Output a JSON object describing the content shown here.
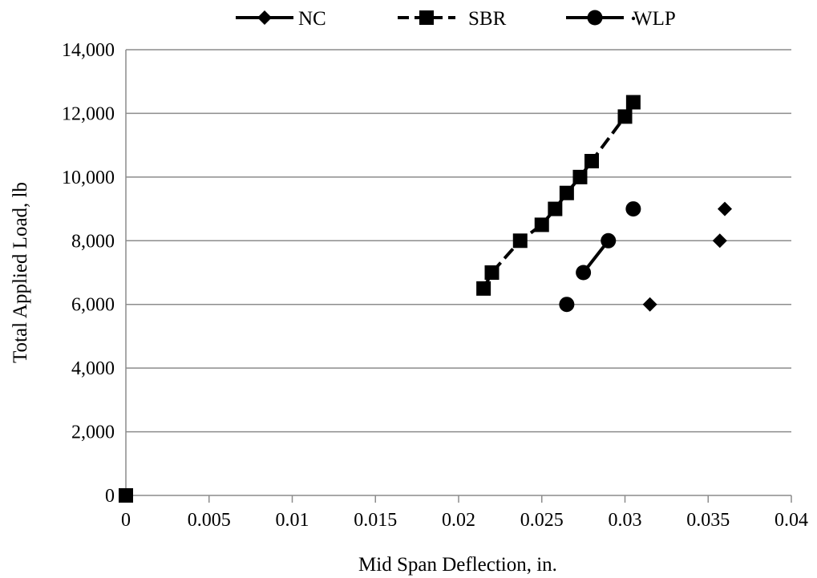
{
  "chart_data": {
    "type": "scatter",
    "title": "",
    "xlabel": "Mid Span Deflection, in.",
    "ylabel": "Total Applied Load, lb",
    "xlim": [
      0,
      0.04
    ],
    "ylim": [
      0,
      14000
    ],
    "x_ticks": [
      "0",
      "0.005",
      "0.01",
      "0.015",
      "0.02",
      "0.025",
      "0.03",
      "0.035",
      "0.04"
    ],
    "y_ticks": [
      "0",
      "2,000",
      "4,000",
      "6,000",
      "8,000",
      "10,000",
      "12,000",
      "14,000"
    ],
    "grid": "horizontal",
    "legend_position": "top",
    "series": [
      {
        "name": "NC",
        "marker": "diamond",
        "line": "solid",
        "color": "#000000",
        "points": [
          [
            0,
            0
          ],
          [
            0.0315,
            6000
          ],
          [
            0.0357,
            8000
          ],
          [
            0.036,
            9000
          ]
        ]
      },
      {
        "name": "SBR",
        "marker": "square",
        "line": "dashed",
        "color": "#000000",
        "points": [
          [
            0,
            0
          ],
          [
            0.0215,
            6500
          ],
          [
            0.022,
            7000
          ],
          [
            0.0237,
            8000
          ],
          [
            0.025,
            8500
          ],
          [
            0.0258,
            9000
          ],
          [
            0.0265,
            9500
          ],
          [
            0.0273,
            10000
          ],
          [
            0.028,
            10500
          ],
          [
            0.03,
            11900
          ],
          [
            0.0305,
            12350
          ]
        ]
      },
      {
        "name": "WLP",
        "marker": "circle",
        "line": "dotted",
        "color": "#000000",
        "points": [
          [
            0.0265,
            6000
          ],
          [
            0.0275,
            7000
          ],
          [
            0.029,
            8000
          ],
          [
            0.0305,
            9000
          ]
        ]
      }
    ]
  }
}
